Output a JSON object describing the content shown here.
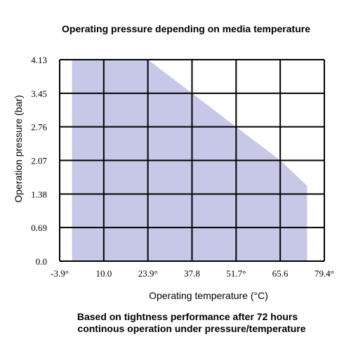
{
  "chart_data": {
    "type": "area",
    "title": "Operating pressure depending on media temperature",
    "xlabel": "Operating temperature (°C)",
    "ylabel": "Operation pressure (bar)",
    "x_ticks": [
      -3.9,
      10.0,
      23.9,
      37.8,
      51.7,
      65.6,
      79.4
    ],
    "x_tick_labels": [
      "-3.9°",
      "10.0",
      "23.9°",
      "37.8",
      "51.7°",
      "65.6",
      "79.4°"
    ],
    "y_ticks": [
      0.0,
      0.69,
      1.38,
      2.07,
      2.76,
      3.45,
      4.13
    ],
    "y_tick_labels": [
      "0.0",
      "0.69",
      "1.38",
      "2.07",
      "2.76",
      "3.45",
      "4.13"
    ],
    "xlim": [
      -3.9,
      79.4
    ],
    "ylim": [
      0.0,
      4.13
    ],
    "grid": true,
    "fill_color": "#c5c8e6",
    "series": [
      {
        "x": [
          0.0,
          0.0,
          23.9,
          37.8,
          51.7,
          65.6,
          74.0,
          74.0
        ],
        "y": [
          0.0,
          4.13,
          4.13,
          3.45,
          2.76,
          2.07,
          1.55,
          0.0
        ]
      }
    ]
  },
  "footnote": {
    "line1": "Based on tightness performance after 72 hours",
    "line2": "continous operation under pressure/temperature"
  }
}
